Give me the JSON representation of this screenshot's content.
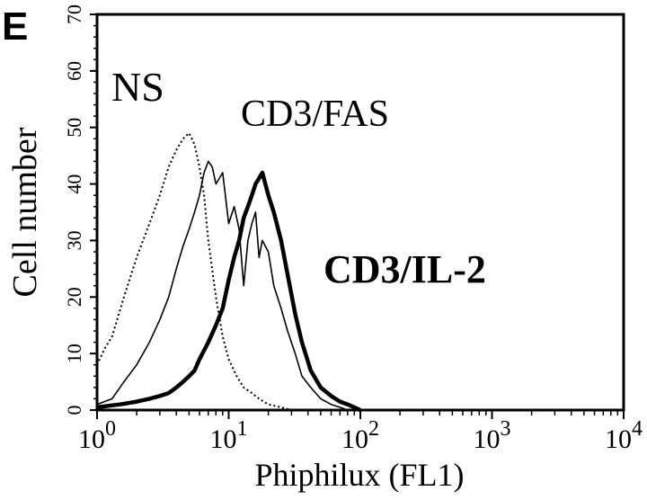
{
  "panel_label": "E",
  "chart_data": {
    "type": "line",
    "title": "",
    "xlabel": "Phiphilux (FL1)",
    "ylabel": "Cell number",
    "x_scale": "log",
    "xlim": [
      1,
      10000
    ],
    "ylim": [
      0,
      70
    ],
    "grid": false,
    "x_ticks": [
      {
        "base": "10",
        "exp": "0"
      },
      {
        "base": "10",
        "exp": "1"
      },
      {
        "base": "10",
        "exp": "2"
      },
      {
        "base": "10",
        "exp": "3"
      },
      {
        "base": "10",
        "exp": "4"
      }
    ],
    "y_ticks": [
      "0",
      "10",
      "20",
      "30",
      "40",
      "50",
      "60",
      "70"
    ],
    "series": [
      {
        "name": "NS",
        "style": "dotted",
        "x": [
          1.0,
          1.15,
          1.3,
          1.6,
          2.0,
          2.5,
          3.0,
          3.5,
          4.0,
          4.5,
          5.0,
          5.5,
          6.0,
          6.5,
          7.0,
          8.0,
          9.0,
          10.0,
          11.5,
          13.0,
          15.0,
          17.0,
          20.0,
          25.0,
          30.0
        ],
        "y": [
          8,
          11,
          13,
          20,
          27,
          33,
          38,
          43,
          46,
          48,
          49,
          47,
          43,
          38,
          30,
          20,
          13,
          9,
          6,
          4,
          3,
          2,
          1,
          0.5,
          0
        ]
      },
      {
        "name": "CD3/FAS",
        "style": "thin",
        "x": [
          1.0,
          1.3,
          1.6,
          2.0,
          2.5,
          3.0,
          3.5,
          4.0,
          4.5,
          5.0,
          5.5,
          6.0,
          6.5,
          7.0,
          7.5,
          8.0,
          9.0,
          10.0,
          11.0,
          12.0,
          13.0,
          14.0,
          15.0,
          16.0,
          17.0,
          18.0,
          20.0,
          22.0,
          25.0,
          28.0,
          32.0,
          36.0,
          42.0,
          50.0,
          60.0,
          70.0,
          80.0
        ],
        "y": [
          1,
          2,
          5,
          8,
          12,
          16,
          20,
          25,
          29,
          32,
          35,
          38,
          42,
          44,
          43,
          40,
          42,
          33,
          36,
          32,
          22,
          30,
          33,
          35,
          27,
          30,
          28,
          22,
          18,
          14,
          10,
          6,
          4,
          2,
          1,
          0.5,
          0
        ]
      },
      {
        "name": "CD3/IL-2",
        "style": "thick",
        "x": [
          1.0,
          1.5,
          2.0,
          2.5,
          3.0,
          3.5,
          4.0,
          4.5,
          5.0,
          5.5,
          6.0,
          7.0,
          8.0,
          9.0,
          10.0,
          11.0,
          12.0,
          13.0,
          14.0,
          15.0,
          16.0,
          17.0,
          18.0,
          19.0,
          20.0,
          22.0,
          25.0,
          28.0,
          32.0,
          36.0,
          42.0,
          50.0,
          60.0,
          70.0,
          80.0,
          90.0,
          100.0
        ],
        "y": [
          0.5,
          1,
          1.5,
          2,
          2.5,
          3,
          4,
          5,
          6,
          7,
          9,
          12,
          15,
          18,
          23,
          27,
          30,
          34,
          36,
          38,
          40,
          41,
          42,
          40,
          38,
          35,
          30,
          24,
          17,
          12,
          7,
          4,
          2.5,
          1.5,
          1,
          0.5,
          0
        ]
      }
    ],
    "annotations": [
      "NS",
      "CD3/FAS",
      "CD3/IL-2"
    ]
  }
}
